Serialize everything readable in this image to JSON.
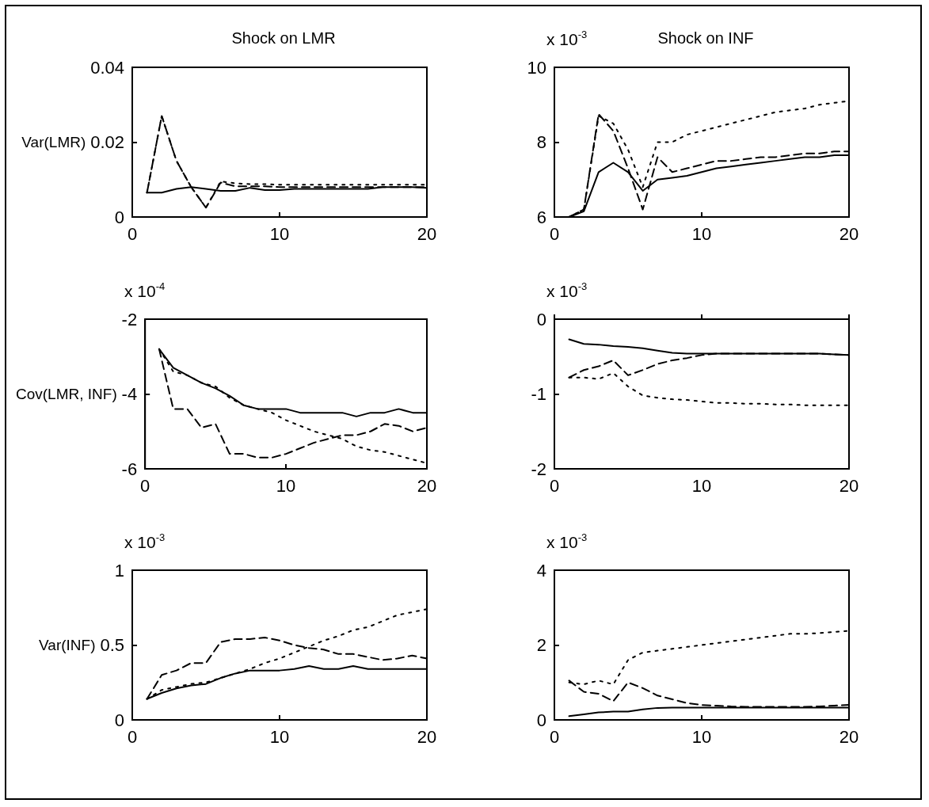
{
  "chart_data": [
    {
      "type": "line",
      "title": "Shock on LMR",
      "ylabel": "Var(LMR)",
      "x": [
        1,
        2,
        3,
        4,
        5,
        6,
        7,
        8,
        9,
        10,
        11,
        12,
        13,
        14,
        15,
        16,
        17,
        18,
        19,
        20
      ],
      "xlim": [
        0,
        20
      ],
      "xticks": [
        0,
        10,
        20
      ],
      "ylim": [
        0,
        0.04
      ],
      "yticks": [
        0,
        0.02,
        0.04
      ],
      "series": [
        {
          "color": "#000000",
          "line_style": "solid",
          "values": [
            0.0065,
            0.0065,
            0.0075,
            0.008,
            0.0075,
            0.007,
            0.007,
            0.0078,
            0.0072,
            0.0072,
            0.0075,
            0.0075,
            0.0075,
            0.0075,
            0.0075,
            0.0075,
            0.008,
            0.008,
            0.008,
            0.0078
          ]
        },
        {
          "color": "#000000",
          "line_style": "dashed",
          "values": [
            0.0065,
            0.027,
            0.015,
            0.008,
            0.0025,
            0.0092,
            0.0082,
            0.0082,
            0.0082,
            0.008,
            0.008,
            0.008,
            0.008,
            0.008,
            0.008,
            0.008,
            0.008,
            0.008,
            0.008,
            0.008
          ]
        },
        {
          "color": "#000000",
          "line_style": "dotted",
          "values": [
            0.0065,
            0.027,
            0.015,
            0.008,
            0.0025,
            0.0095,
            0.009,
            0.0088,
            0.0088,
            0.0086,
            0.0086,
            0.0086,
            0.0086,
            0.0086,
            0.0086,
            0.0086,
            0.0086,
            0.0086,
            0.0086,
            0.0086
          ]
        }
      ]
    },
    {
      "type": "line",
      "title": "Shock on INF",
      "annotations": [
        "x 10$^{-3}$"
      ],
      "x": [
        1,
        2,
        3,
        4,
        5,
        6,
        7,
        8,
        9,
        10,
        11,
        12,
        13,
        14,
        15,
        16,
        17,
        18,
        19,
        20
      ],
      "xlim": [
        0,
        20
      ],
      "xticks": [
        0,
        10,
        20
      ],
      "ylim": [
        6,
        10
      ],
      "yticks": [
        6,
        8,
        10
      ],
      "series": [
        {
          "color": "#000000",
          "line_style": "solid",
          "values": [
            6.0,
            6.15,
            7.2,
            7.45,
            7.2,
            6.7,
            7.0,
            7.05,
            7.1,
            7.2,
            7.3,
            7.35,
            7.4,
            7.45,
            7.5,
            7.55,
            7.6,
            7.6,
            7.65,
            7.65
          ]
        },
        {
          "color": "#000000",
          "line_style": "dashed",
          "values": [
            6.0,
            6.2,
            8.75,
            8.3,
            7.3,
            6.2,
            7.6,
            7.2,
            7.3,
            7.4,
            7.5,
            7.5,
            7.55,
            7.6,
            7.6,
            7.65,
            7.7,
            7.7,
            7.75,
            7.75
          ]
        },
        {
          "color": "#000000",
          "line_style": "dotted",
          "values": [
            6.0,
            6.2,
            8.7,
            8.5,
            7.8,
            6.8,
            8.0,
            8.0,
            8.2,
            8.3,
            8.4,
            8.5,
            8.6,
            8.7,
            8.8,
            8.85,
            8.9,
            9.0,
            9.05,
            9.1
          ]
        }
      ]
    },
    {
      "type": "line",
      "ylabel": "Cov(LMR, INF)",
      "annotations": [
        "x 10$^{-4}$"
      ],
      "x": [
        1,
        2,
        3,
        4,
        5,
        6,
        7,
        8,
        9,
        10,
        11,
        12,
        13,
        14,
        15,
        16,
        17,
        18,
        19,
        20
      ],
      "xlim": [
        0,
        20
      ],
      "xticks": [
        0,
        10,
        20
      ],
      "ylim": [
        -6,
        -2
      ],
      "yticks": [
        -6,
        -4,
        -2
      ],
      "series": [
        {
          "color": "#000000",
          "line_style": "solid",
          "values": [
            -2.8,
            -3.3,
            -3.5,
            -3.7,
            -3.85,
            -4.05,
            -4.3,
            -4.4,
            -4.4,
            -4.4,
            -4.5,
            -4.5,
            -4.5,
            -4.5,
            -4.6,
            -4.5,
            -4.5,
            -4.4,
            -4.5,
            -4.5
          ]
        },
        {
          "color": "#000000",
          "line_style": "dashed",
          "values": [
            -2.8,
            -4.4,
            -4.4,
            -4.9,
            -4.8,
            -5.6,
            -5.6,
            -5.7,
            -5.7,
            -5.6,
            -5.45,
            -5.3,
            -5.2,
            -5.1,
            -5.1,
            -5.0,
            -4.8,
            -4.85,
            -5.0,
            -4.9
          ]
        },
        {
          "color": "#000000",
          "line_style": "dotted",
          "values": [
            -2.8,
            -3.4,
            -3.5,
            -3.7,
            -3.8,
            -4.1,
            -4.3,
            -4.4,
            -4.5,
            -4.7,
            -4.85,
            -5.0,
            -5.1,
            -5.2,
            -5.4,
            -5.5,
            -5.55,
            -5.65,
            -5.75,
            -5.85
          ]
        }
      ]
    },
    {
      "type": "line",
      "annotations": [
        "x 10$^{-3}$"
      ],
      "x": [
        1,
        2,
        3,
        4,
        5,
        6,
        7,
        8,
        9,
        10,
        11,
        12,
        13,
        14,
        15,
        16,
        17,
        18,
        19,
        20
      ],
      "xlim": [
        0,
        20
      ],
      "xticks": [
        0,
        10,
        20
      ],
      "ylim": [
        -2,
        0
      ],
      "yticks": [
        -2,
        -1,
        0
      ],
      "series": [
        {
          "color": "#000000",
          "line_style": "solid",
          "values": [
            -0.27,
            -0.33,
            -0.34,
            -0.36,
            -0.37,
            -0.39,
            -0.42,
            -0.45,
            -0.46,
            -0.46,
            -0.46,
            -0.46,
            -0.46,
            -0.46,
            -0.46,
            -0.46,
            -0.46,
            -0.46,
            -0.47,
            -0.48
          ]
        },
        {
          "color": "#000000",
          "line_style": "dashed",
          "values": [
            -0.78,
            -0.68,
            -0.63,
            -0.55,
            -0.75,
            -0.68,
            -0.6,
            -0.55,
            -0.52,
            -0.48,
            -0.46,
            -0.46,
            -0.46,
            -0.46,
            -0.46,
            -0.46,
            -0.46,
            -0.46,
            -0.47,
            -0.48
          ]
        },
        {
          "color": "#000000",
          "line_style": "dotted",
          "values": [
            -0.78,
            -0.78,
            -0.8,
            -0.72,
            -0.9,
            -1.02,
            -1.05,
            -1.07,
            -1.08,
            -1.1,
            -1.12,
            -1.12,
            -1.13,
            -1.13,
            -1.14,
            -1.14,
            -1.15,
            -1.15,
            -1.15,
            -1.15
          ]
        }
      ]
    },
    {
      "type": "line",
      "ylabel": "Var(INF)",
      "annotations": [
        "x 10$^{-3}$"
      ],
      "x": [
        1,
        2,
        3,
        4,
        5,
        6,
        7,
        8,
        9,
        10,
        11,
        12,
        13,
        14,
        15,
        16,
        17,
        18,
        19,
        20
      ],
      "xlim": [
        0,
        20
      ],
      "xticks": [
        0,
        10,
        20
      ],
      "ylim": [
        0,
        1
      ],
      "yticks": [
        0,
        0.5,
        1
      ],
      "series": [
        {
          "color": "#000000",
          "line_style": "solid",
          "values": [
            0.14,
            0.18,
            0.21,
            0.23,
            0.24,
            0.28,
            0.31,
            0.33,
            0.33,
            0.33,
            0.34,
            0.36,
            0.34,
            0.34,
            0.36,
            0.34,
            0.34,
            0.34,
            0.34,
            0.34
          ]
        },
        {
          "color": "#000000",
          "line_style": "dashed",
          "values": [
            0.14,
            0.3,
            0.33,
            0.38,
            0.38,
            0.52,
            0.54,
            0.54,
            0.55,
            0.53,
            0.5,
            0.48,
            0.47,
            0.44,
            0.44,
            0.42,
            0.4,
            0.41,
            0.43,
            0.41
          ]
        },
        {
          "color": "#000000",
          "line_style": "dotted",
          "values": [
            0.14,
            0.2,
            0.22,
            0.24,
            0.25,
            0.28,
            0.31,
            0.34,
            0.38,
            0.41,
            0.45,
            0.49,
            0.53,
            0.56,
            0.6,
            0.62,
            0.66,
            0.7,
            0.72,
            0.74
          ]
        }
      ]
    },
    {
      "type": "line",
      "annotations": [
        "x 10$^{-3}$"
      ],
      "x": [
        1,
        2,
        3,
        4,
        5,
        6,
        7,
        8,
        9,
        10,
        11,
        12,
        13,
        14,
        15,
        16,
        17,
        18,
        19,
        20
      ],
      "xlim": [
        0,
        20
      ],
      "xticks": [
        0,
        10,
        20
      ],
      "ylim": [
        0,
        4
      ],
      "yticks": [
        0,
        2,
        4
      ],
      "series": [
        {
          "color": "#000000",
          "line_style": "solid",
          "values": [
            0.1,
            0.15,
            0.2,
            0.22,
            0.22,
            0.28,
            0.32,
            0.33,
            0.33,
            0.33,
            0.33,
            0.33,
            0.33,
            0.33,
            0.33,
            0.33,
            0.33,
            0.33,
            0.33,
            0.33
          ]
        },
        {
          "color": "#000000",
          "line_style": "dashed",
          "values": [
            1.05,
            0.75,
            0.7,
            0.5,
            1.0,
            0.85,
            0.65,
            0.55,
            0.45,
            0.4,
            0.38,
            0.36,
            0.35,
            0.35,
            0.35,
            0.35,
            0.35,
            0.36,
            0.38,
            0.4
          ]
        },
        {
          "color": "#000000",
          "line_style": "dotted",
          "values": [
            1.0,
            0.95,
            1.05,
            0.95,
            1.6,
            1.8,
            1.85,
            1.9,
            1.95,
            2.0,
            2.05,
            2.1,
            2.15,
            2.2,
            2.25,
            2.3,
            2.3,
            2.32,
            2.35,
            2.38
          ]
        }
      ]
    }
  ]
}
